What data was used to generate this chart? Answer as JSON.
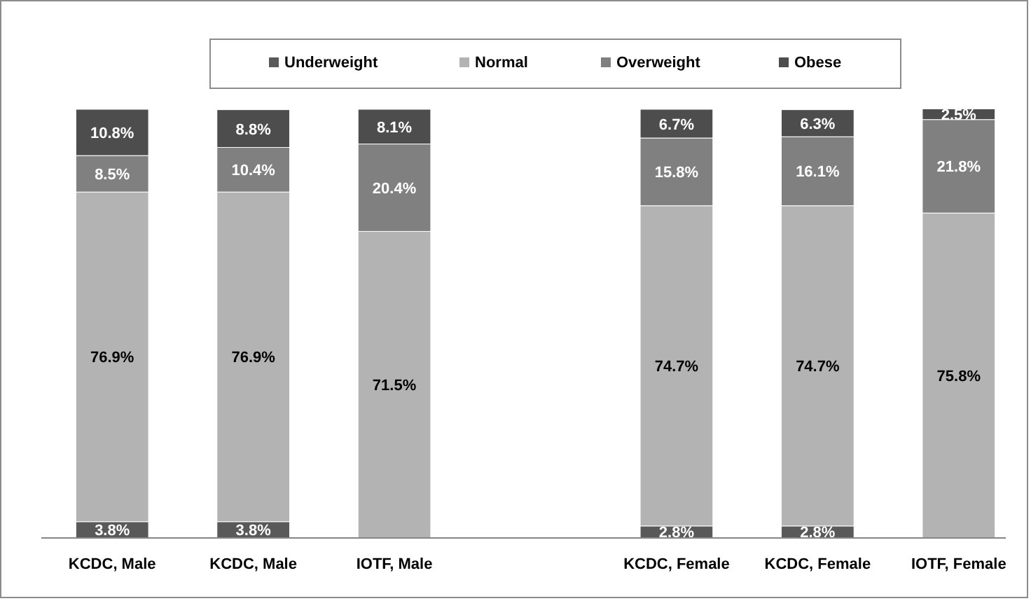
{
  "chart_data": {
    "type": "bar",
    "stacked": true,
    "categories": [
      "KCDC, Male",
      "KCDC, Male",
      "IOTF, Male",
      null,
      "KCDC, Female",
      "KCDC, Female",
      "IOTF, Female"
    ],
    "series": [
      {
        "name": "Underweight",
        "color": "#595959",
        "values": [
          3.8,
          3.8,
          null,
          null,
          2.8,
          2.8,
          null
        ],
        "value_labels": [
          "3.8%",
          "3.8%",
          null,
          null,
          "2.8%",
          "2.8%",
          null
        ]
      },
      {
        "name": "Normal",
        "color": "#b3b3b3",
        "values": [
          76.9,
          76.9,
          71.5,
          null,
          74.7,
          74.7,
          75.8
        ],
        "value_labels": [
          "76.9%",
          "76.9%",
          "71.5%",
          null,
          "74.7%",
          "74.7%",
          "75.8%"
        ]
      },
      {
        "name": "Overweight",
        "color": "#808080",
        "values": [
          8.5,
          10.4,
          20.4,
          null,
          15.8,
          16.1,
          21.8
        ],
        "value_labels": [
          "8.5%",
          "10.4%",
          "20.4%",
          null,
          "15.8%",
          "16.1%",
          "21.8%"
        ]
      },
      {
        "name": "Obese",
        "color": "#4d4d4d",
        "values": [
          10.8,
          8.8,
          8.1,
          null,
          6.7,
          6.3,
          2.5
        ],
        "value_labels": [
          "10.8%",
          "8.8%",
          "8.1%",
          null,
          "6.7%",
          "6.3%",
          "2.5%"
        ]
      }
    ],
    "ylim": [
      0,
      100
    ],
    "tick_labels": "x",
    "legend": "top"
  }
}
